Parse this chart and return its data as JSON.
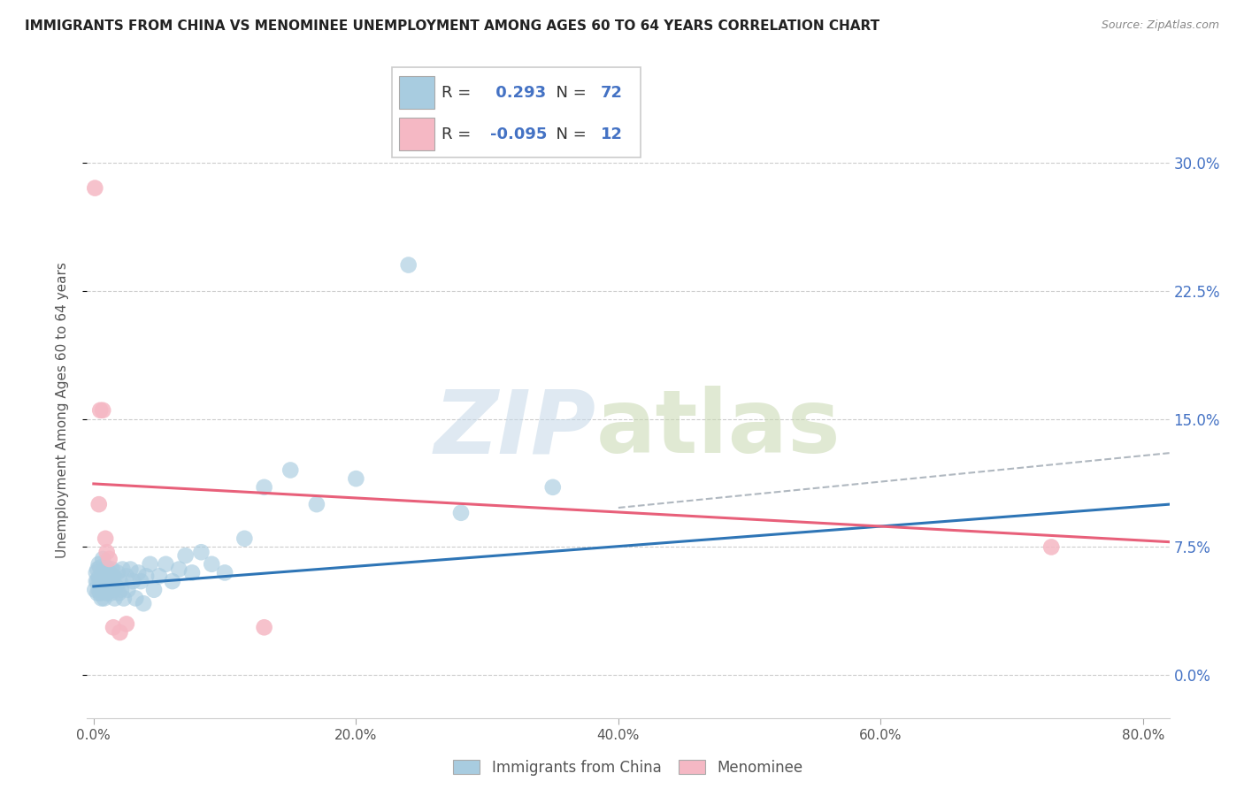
{
  "title": "IMMIGRANTS FROM CHINA VS MENOMINEE UNEMPLOYMENT AMONG AGES 60 TO 64 YEARS CORRELATION CHART",
  "source": "Source: ZipAtlas.com",
  "ylabel": "Unemployment Among Ages 60 to 64 years",
  "ytick_values": [
    0.0,
    0.075,
    0.15,
    0.225,
    0.3
  ],
  "ytick_labels_right": [
    "0.0%",
    "7.5%",
    "15.0%",
    "22.5%",
    "30.0%"
  ],
  "xlim": [
    -0.005,
    0.82
  ],
  "ylim": [
    -0.025,
    0.335
  ],
  "blue_R": "0.293",
  "blue_N": "72",
  "pink_R": "-0.095",
  "pink_N": "12",
  "blue_color": "#a8cce0",
  "pink_color": "#f5b8c4",
  "blue_line_color": "#2e75b6",
  "pink_line_color": "#e8607a",
  "right_tick_color": "#4472c4",
  "legend_label_blue": "Immigrants from China",
  "legend_label_pink": "Menominee",
  "blue_scatter_x": [
    0.001,
    0.002,
    0.002,
    0.003,
    0.003,
    0.003,
    0.004,
    0.004,
    0.004,
    0.005,
    0.005,
    0.005,
    0.006,
    0.006,
    0.006,
    0.007,
    0.007,
    0.007,
    0.008,
    0.008,
    0.008,
    0.009,
    0.009,
    0.01,
    0.01,
    0.01,
    0.011,
    0.011,
    0.012,
    0.012,
    0.013,
    0.013,
    0.014,
    0.014,
    0.015,
    0.015,
    0.016,
    0.017,
    0.018,
    0.019,
    0.02,
    0.021,
    0.022,
    0.023,
    0.025,
    0.026,
    0.028,
    0.03,
    0.032,
    0.034,
    0.036,
    0.038,
    0.04,
    0.043,
    0.046,
    0.05,
    0.055,
    0.06,
    0.065,
    0.07,
    0.075,
    0.082,
    0.09,
    0.1,
    0.115,
    0.13,
    0.15,
    0.17,
    0.2,
    0.24,
    0.28,
    0.35
  ],
  "blue_scatter_y": [
    0.05,
    0.055,
    0.06,
    0.048,
    0.055,
    0.062,
    0.05,
    0.057,
    0.065,
    0.048,
    0.055,
    0.063,
    0.05,
    0.057,
    0.045,
    0.052,
    0.06,
    0.068,
    0.05,
    0.057,
    0.045,
    0.052,
    0.06,
    0.048,
    0.055,
    0.063,
    0.05,
    0.058,
    0.052,
    0.06,
    0.055,
    0.048,
    0.062,
    0.055,
    0.05,
    0.058,
    0.045,
    0.052,
    0.06,
    0.048,
    0.055,
    0.05,
    0.062,
    0.045,
    0.058,
    0.05,
    0.062,
    0.055,
    0.045,
    0.06,
    0.055,
    0.042,
    0.058,
    0.065,
    0.05,
    0.058,
    0.065,
    0.055,
    0.062,
    0.07,
    0.06,
    0.072,
    0.065,
    0.06,
    0.08,
    0.11,
    0.12,
    0.1,
    0.115,
    0.24,
    0.095,
    0.11
  ],
  "pink_scatter_x": [
    0.001,
    0.004,
    0.005,
    0.007,
    0.009,
    0.01,
    0.012,
    0.015,
    0.02,
    0.025,
    0.13,
    0.73
  ],
  "pink_scatter_y": [
    0.285,
    0.1,
    0.155,
    0.155,
    0.08,
    0.072,
    0.068,
    0.028,
    0.025,
    0.03,
    0.028,
    0.075
  ],
  "blue_trend_x": [
    0.0,
    0.82
  ],
  "blue_trend_y": [
    0.052,
    0.1
  ],
  "pink_trend_x": [
    0.0,
    0.82
  ],
  "pink_trend_y": [
    0.112,
    0.078
  ],
  "dashed_trend_x": [
    0.4,
    0.82
  ],
  "dashed_trend_y": [
    0.098,
    0.13
  ]
}
